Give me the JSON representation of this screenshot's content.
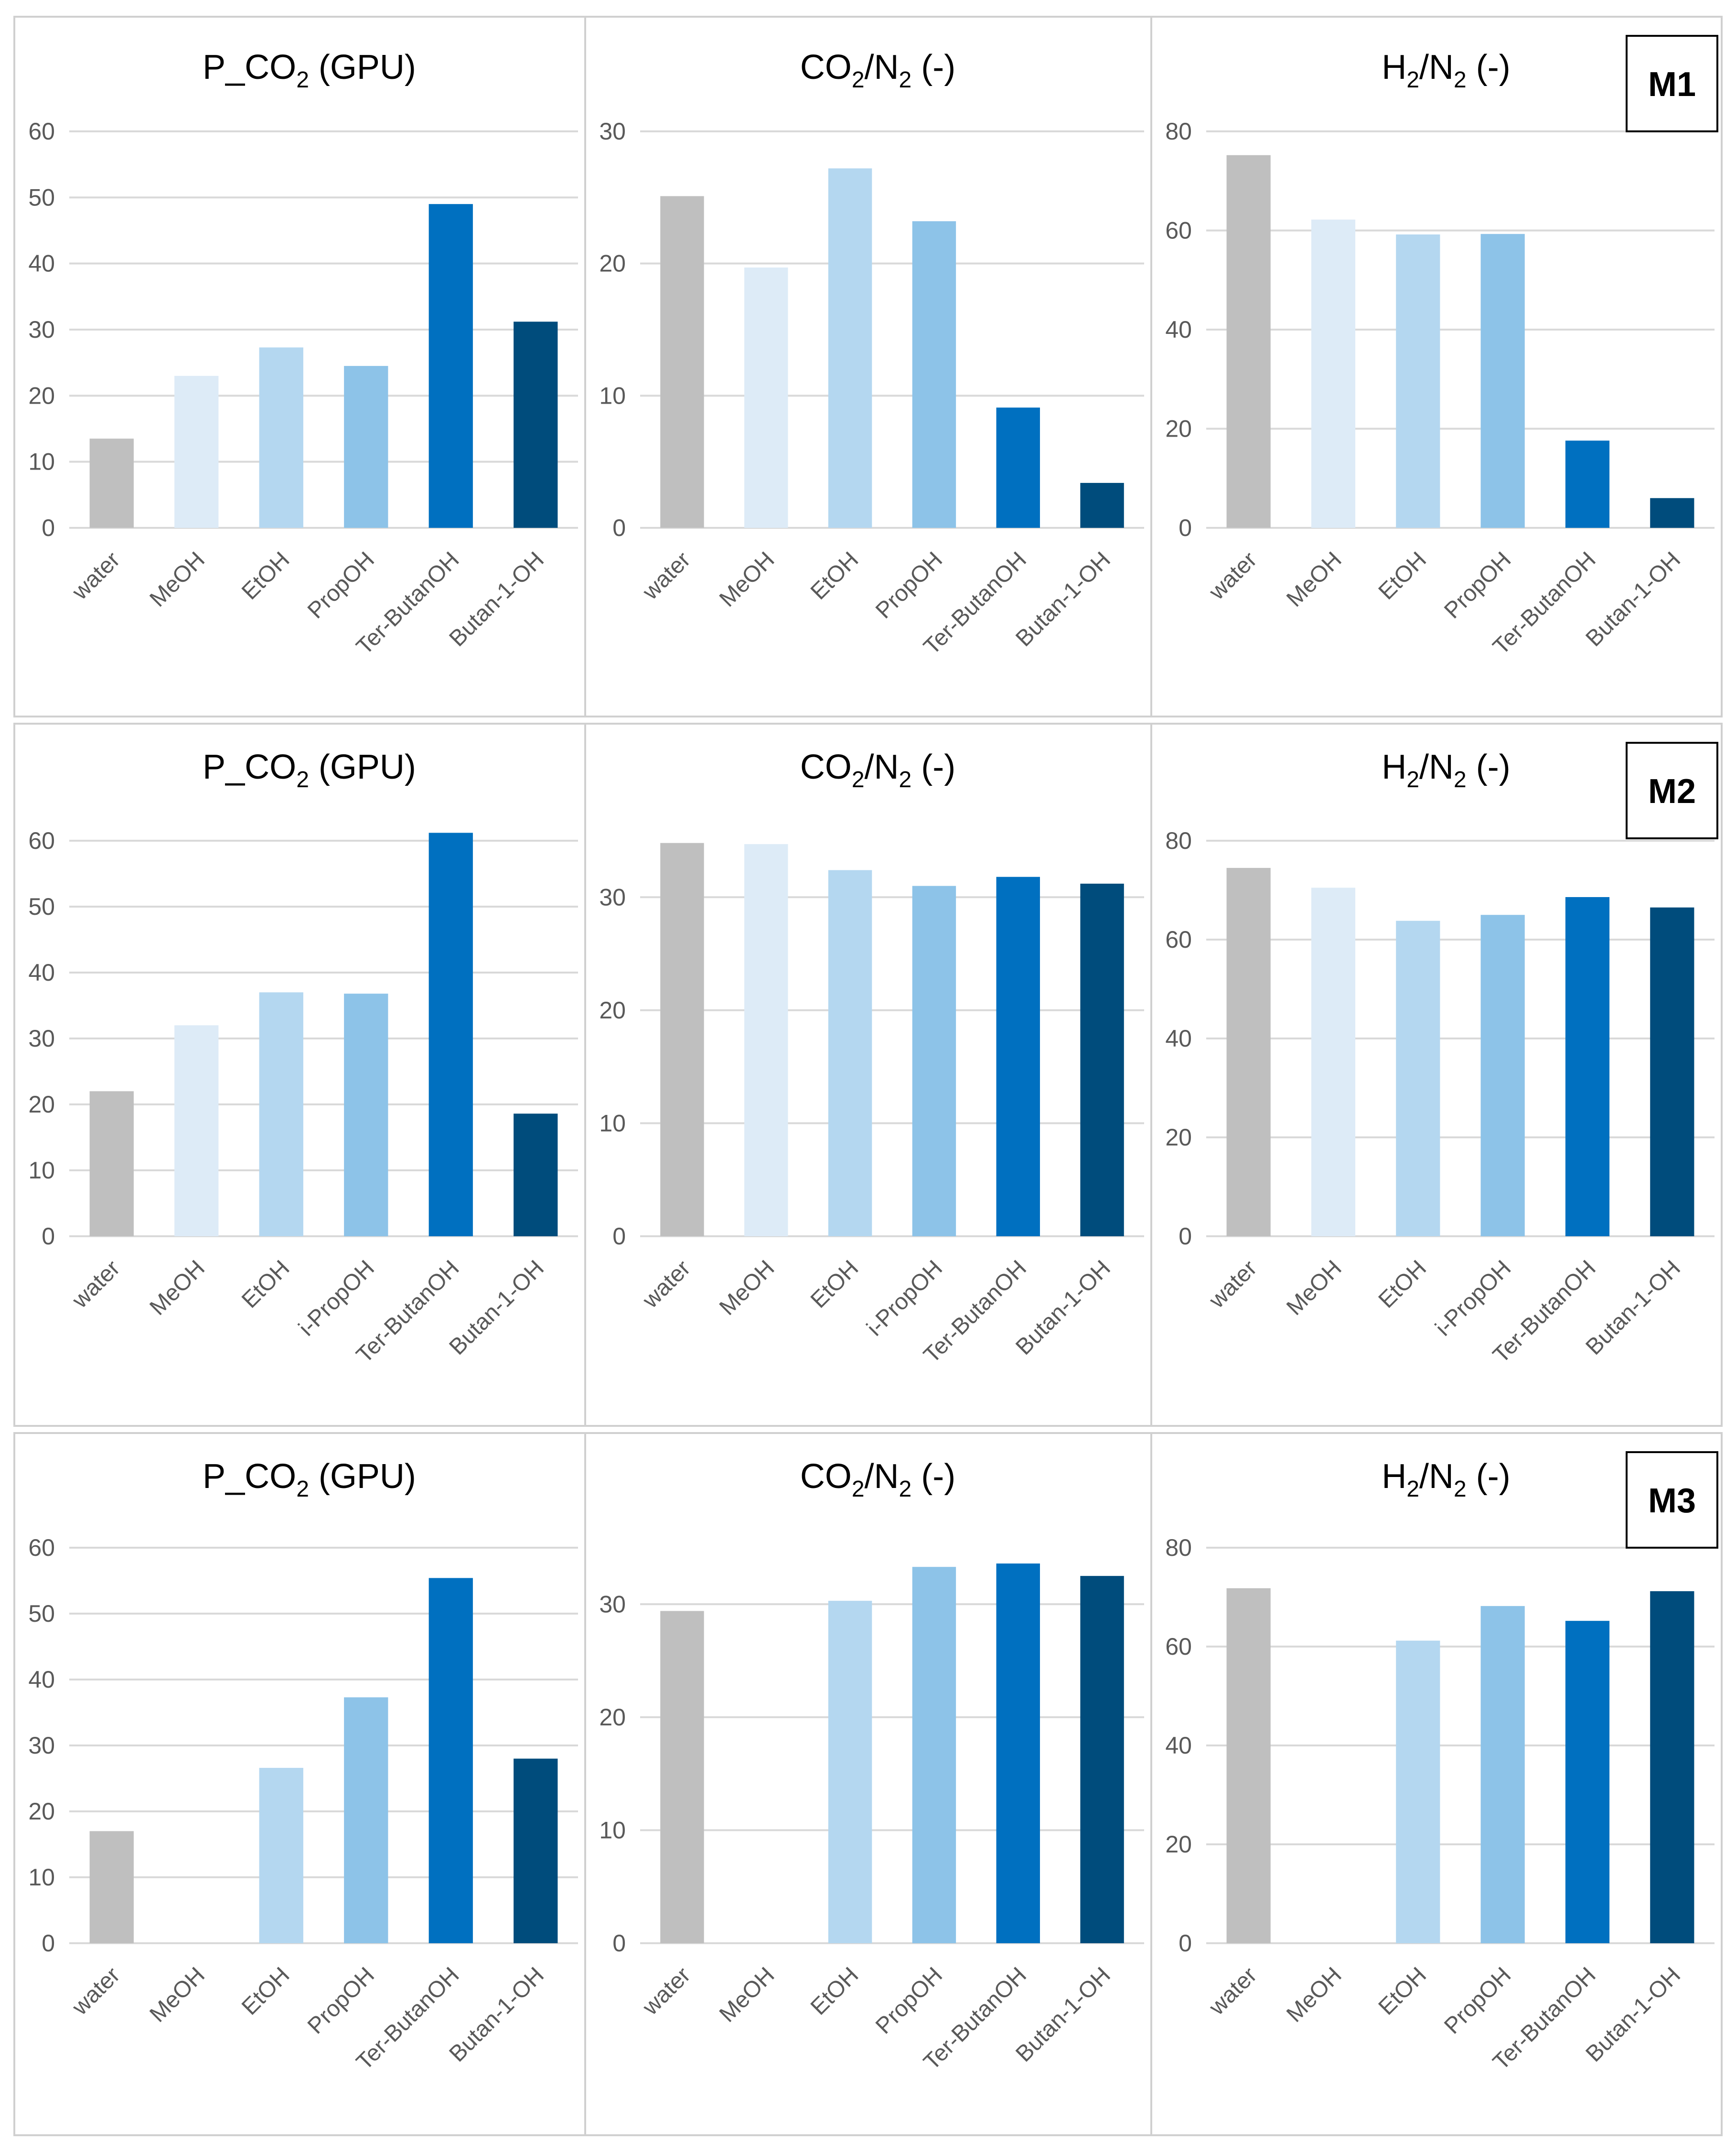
{
  "colors": {
    "water": "#bfbfbf",
    "MeOH": "#ddebf7",
    "EtOH": "#b4d7f0",
    "PropOH": "#8dc3e8",
    "Ter-ButanOH": "#0070c0",
    "Butan-1-OH": "#004c7c"
  },
  "rows": [
    {
      "badge": "M1",
      "charts": [
        {
          "type": "bar",
          "title_parts": [
            "P_CO",
            "2",
            " (GPU)"
          ],
          "yticks": [
            "0",
            "10",
            "20",
            "30",
            "40",
            "50",
            "60"
          ],
          "ylim": [
            0,
            60
          ],
          "categories": [
            "water",
            "MeOH",
            "EtOH",
            "PropOH",
            "Ter-ButanOH",
            "Butan-1-OH"
          ],
          "values": [
            13.5,
            23,
            27.3,
            24.5,
            49,
            31.2
          ]
        },
        {
          "type": "bar",
          "title_parts": [
            "CO",
            "2",
            "/N",
            "2",
            " (-)"
          ],
          "yticks": [
            "0",
            "10",
            "20",
            "30"
          ],
          "ylim": [
            0,
            30
          ],
          "categories": [
            "water",
            "MeOH",
            "EtOH",
            "PropOH",
            "Ter-ButanOH",
            "Butan-1-OH"
          ],
          "values": [
            25.1,
            19.7,
            27.2,
            23.2,
            9.1,
            3.4
          ]
        },
        {
          "type": "bar",
          "title_parts": [
            "H",
            "2",
            "/N",
            "2",
            " (-)"
          ],
          "yticks": [
            "0",
            "20",
            "40",
            "60",
            "80"
          ],
          "ylim": [
            0,
            80
          ],
          "categories": [
            "water",
            "MeOH",
            "EtOH",
            "PropOH",
            "Ter-ButanOH",
            "Butan-1-OH"
          ],
          "values": [
            75.2,
            62.2,
            59.2,
            59.3,
            17.6,
            6
          ]
        }
      ]
    },
    {
      "badge": "M2",
      "charts": [
        {
          "type": "bar",
          "title_parts": [
            "P_CO",
            "2",
            " (GPU)"
          ],
          "yticks": [
            "0",
            "10",
            "20",
            "30",
            "40",
            "50",
            "60"
          ],
          "ylim": [
            0,
            60
          ],
          "categories": [
            "water",
            "MeOH",
            "EtOH",
            "i-PropOH",
            "Ter-ButanOH",
            "Butan-1-OH"
          ],
          "values": [
            22,
            32,
            37,
            36.8,
            61.2,
            18.6
          ]
        },
        {
          "type": "bar",
          "title_parts": [
            "CO",
            "2",
            "/N",
            "2",
            " (-)"
          ],
          "yticks": [
            "0",
            "10",
            "20",
            "30"
          ],
          "ylim": [
            0,
            35
          ],
          "categories": [
            "water",
            "MeOH",
            "EtOH",
            "i-PropOH",
            "Ter-ButanOH",
            "Butan-1-OH"
          ],
          "values": [
            34.8,
            34.7,
            32.4,
            31,
            31.8,
            31.2
          ]
        },
        {
          "type": "bar",
          "title_parts": [
            "H",
            "2",
            "/N",
            "2",
            " (-)"
          ],
          "yticks": [
            "0",
            "20",
            "40",
            "60",
            "80"
          ],
          "ylim": [
            0,
            80
          ],
          "categories": [
            "water",
            "MeOH",
            "EtOH",
            "i-PropOH",
            "Ter-ButanOH",
            "Butan-1-OH"
          ],
          "values": [
            74.5,
            70.5,
            63.8,
            65,
            68.6,
            66.5
          ]
        }
      ]
    },
    {
      "badge": "M3",
      "charts": [
        {
          "type": "bar",
          "title_parts": [
            "P_CO",
            "2",
            " (GPU)"
          ],
          "yticks": [
            "0",
            "10",
            "20",
            "30",
            "40",
            "50",
            "60"
          ],
          "ylim": [
            0,
            60
          ],
          "categories": [
            "water",
            "MeOH",
            "EtOH",
            "PropOH",
            "Ter-ButanOH",
            "Butan-1-OH"
          ],
          "values": [
            17,
            0,
            26.6,
            37.3,
            55.4,
            28
          ]
        },
        {
          "type": "bar",
          "title_parts": [
            "CO",
            "2",
            "/N",
            "2",
            " (-)"
          ],
          "yticks": [
            "0",
            "10",
            "20",
            "30"
          ],
          "ylim": [
            0,
            35
          ],
          "categories": [
            "water",
            "MeOH",
            "EtOH",
            "PropOH",
            "Ter-ButanOH",
            "Butan-1-OH"
          ],
          "values": [
            29.4,
            0,
            30.3,
            33.3,
            33.6,
            32.5
          ]
        },
        {
          "type": "bar",
          "title_parts": [
            "H",
            "2",
            "/N",
            "2",
            " (-)"
          ],
          "yticks": [
            "0",
            "20",
            "40",
            "60",
            "80"
          ],
          "ylim": [
            0,
            80
          ],
          "categories": [
            "water",
            "MeOH",
            "EtOH",
            "PropOH",
            "Ter-ButanOH",
            "Butan-1-OH"
          ],
          "values": [
            71.8,
            0,
            61.2,
            68.2,
            65.2,
            71.2
          ]
        }
      ]
    }
  ],
  "chart_data": [
    {
      "type": "bar",
      "title": "M1 P_CO2 (GPU)",
      "categories": [
        "water",
        "MeOH",
        "EtOH",
        "PropOH",
        "Ter-ButanOH",
        "Butan-1-OH"
      ],
      "values": [
        13.5,
        23,
        27.3,
        24.5,
        49,
        31.2
      ],
      "ylim": [
        0,
        60
      ]
    },
    {
      "type": "bar",
      "title": "M1 CO2/N2 (-)",
      "categories": [
        "water",
        "MeOH",
        "EtOH",
        "PropOH",
        "Ter-ButanOH",
        "Butan-1-OH"
      ],
      "values": [
        25.1,
        19.7,
        27.2,
        23.2,
        9.1,
        3.4
      ],
      "ylim": [
        0,
        30
      ]
    },
    {
      "type": "bar",
      "title": "M1 H2/N2 (-)",
      "categories": [
        "water",
        "MeOH",
        "EtOH",
        "PropOH",
        "Ter-ButanOH",
        "Butan-1-OH"
      ],
      "values": [
        75.2,
        62.2,
        59.2,
        59.3,
        17.6,
        6
      ],
      "ylim": [
        0,
        80
      ]
    },
    {
      "type": "bar",
      "title": "M2 P_CO2 (GPU)",
      "categories": [
        "water",
        "MeOH",
        "EtOH",
        "i-PropOH",
        "Ter-ButanOH",
        "Butan-1-OH"
      ],
      "values": [
        22,
        32,
        37,
        36.8,
        61.2,
        18.6
      ],
      "ylim": [
        0,
        60
      ]
    },
    {
      "type": "bar",
      "title": "M2 CO2/N2 (-)",
      "categories": [
        "water",
        "MeOH",
        "EtOH",
        "i-PropOH",
        "Ter-ButanOH",
        "Butan-1-OH"
      ],
      "values": [
        34.8,
        34.7,
        32.4,
        31,
        31.8,
        31.2
      ],
      "ylim": [
        0,
        35
      ]
    },
    {
      "type": "bar",
      "title": "M2 H2/N2 (-)",
      "categories": [
        "water",
        "MeOH",
        "EtOH",
        "i-PropOH",
        "Ter-ButanOH",
        "Butan-1-OH"
      ],
      "values": [
        74.5,
        70.5,
        63.8,
        65,
        68.6,
        66.5
      ],
      "ylim": [
        0,
        80
      ]
    },
    {
      "type": "bar",
      "title": "M3 P_CO2 (GPU)",
      "categories": [
        "water",
        "MeOH",
        "EtOH",
        "PropOH",
        "Ter-ButanOH",
        "Butan-1-OH"
      ],
      "values": [
        17,
        0,
        26.6,
        37.3,
        55.4,
        28
      ],
      "ylim": [
        0,
        60
      ]
    },
    {
      "type": "bar",
      "title": "M3 CO2/N2 (-)",
      "categories": [
        "water",
        "MeOH",
        "EtOH",
        "PropOH",
        "Ter-ButanOH",
        "Butan-1-OH"
      ],
      "values": [
        29.4,
        0,
        30.3,
        33.3,
        33.6,
        32.5
      ],
      "ylim": [
        0,
        35
      ]
    },
    {
      "type": "bar",
      "title": "M3 H2/N2 (-)",
      "categories": [
        "water",
        "MeOH",
        "EtOH",
        "PropOH",
        "Ter-ButanOH",
        "Butan-1-OH"
      ],
      "values": [
        71.8,
        0,
        61.2,
        68.2,
        65.2,
        71.2
      ],
      "ylim": [
        0,
        80
      ]
    }
  ]
}
